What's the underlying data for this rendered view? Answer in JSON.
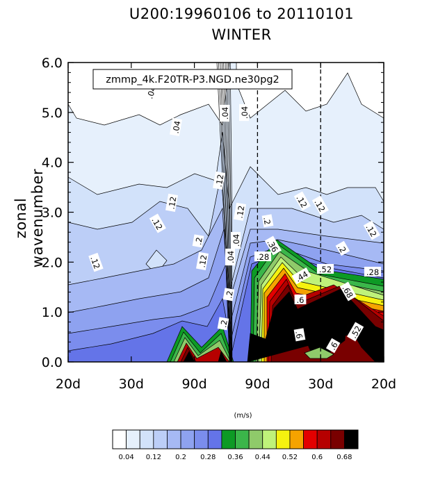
{
  "title_line1": "U200:19960106 to 20110101",
  "title_line2": "WINTER",
  "ylabel": "zonal wavenumber",
  "case_label": "zmmp_4k.F20TR-P3.NGD.ne30pg2",
  "units_label": "(m/s)",
  "chart_data": {
    "type": "contour",
    "title": "U200:19960106 to 20110101 WINTER",
    "xlabel": "",
    "ylabel": "zonal wavenumber",
    "ylim": [
      0,
      6
    ],
    "x_tick_labels": [
      "20d",
      "30d",
      "90d",
      "90d",
      "30d",
      "20d"
    ],
    "y_tick_labels": [
      "0.0",
      "1.0",
      "2.0",
      "3.0",
      "4.0",
      "5.0",
      "6.0"
    ],
    "colorbar_labels": [
      "0.04",
      "0.12",
      "0.2",
      "0.28",
      "0.36",
      "0.44",
      "0.52",
      "0.6",
      "0.68"
    ],
    "colorbar_colors": [
      "#ffffff",
      "#e6f0fc",
      "#d2e2fa",
      "#bccef7",
      "#a6b9f4",
      "#8ea2f0",
      "#7b8ded",
      "#6474e8",
      "#0d9a25",
      "#3bb64a",
      "#8fca6a",
      "#bff27a",
      "#f5f20f",
      "#f5a300",
      "#e30000",
      "#b60000",
      "#790000",
      "#000000"
    ],
    "contour_labels": [
      ".04",
      ".04",
      ".04",
      ".04",
      ".12",
      ".12",
      ".12",
      ".12",
      ".12",
      ".12",
      ".2",
      ".2",
      ".2",
      ".2",
      ".2",
      ".04",
      ".04",
      ".12",
      ".28",
      ".36",
      ".44",
      ".52",
      ".6",
      ".6",
      ".68",
      ".52",
      ".6",
      ".28",
      ".12",
      ".12"
    ],
    "dashed_lines_at_tick": [
      "90d",
      "30d"
    ]
  }
}
